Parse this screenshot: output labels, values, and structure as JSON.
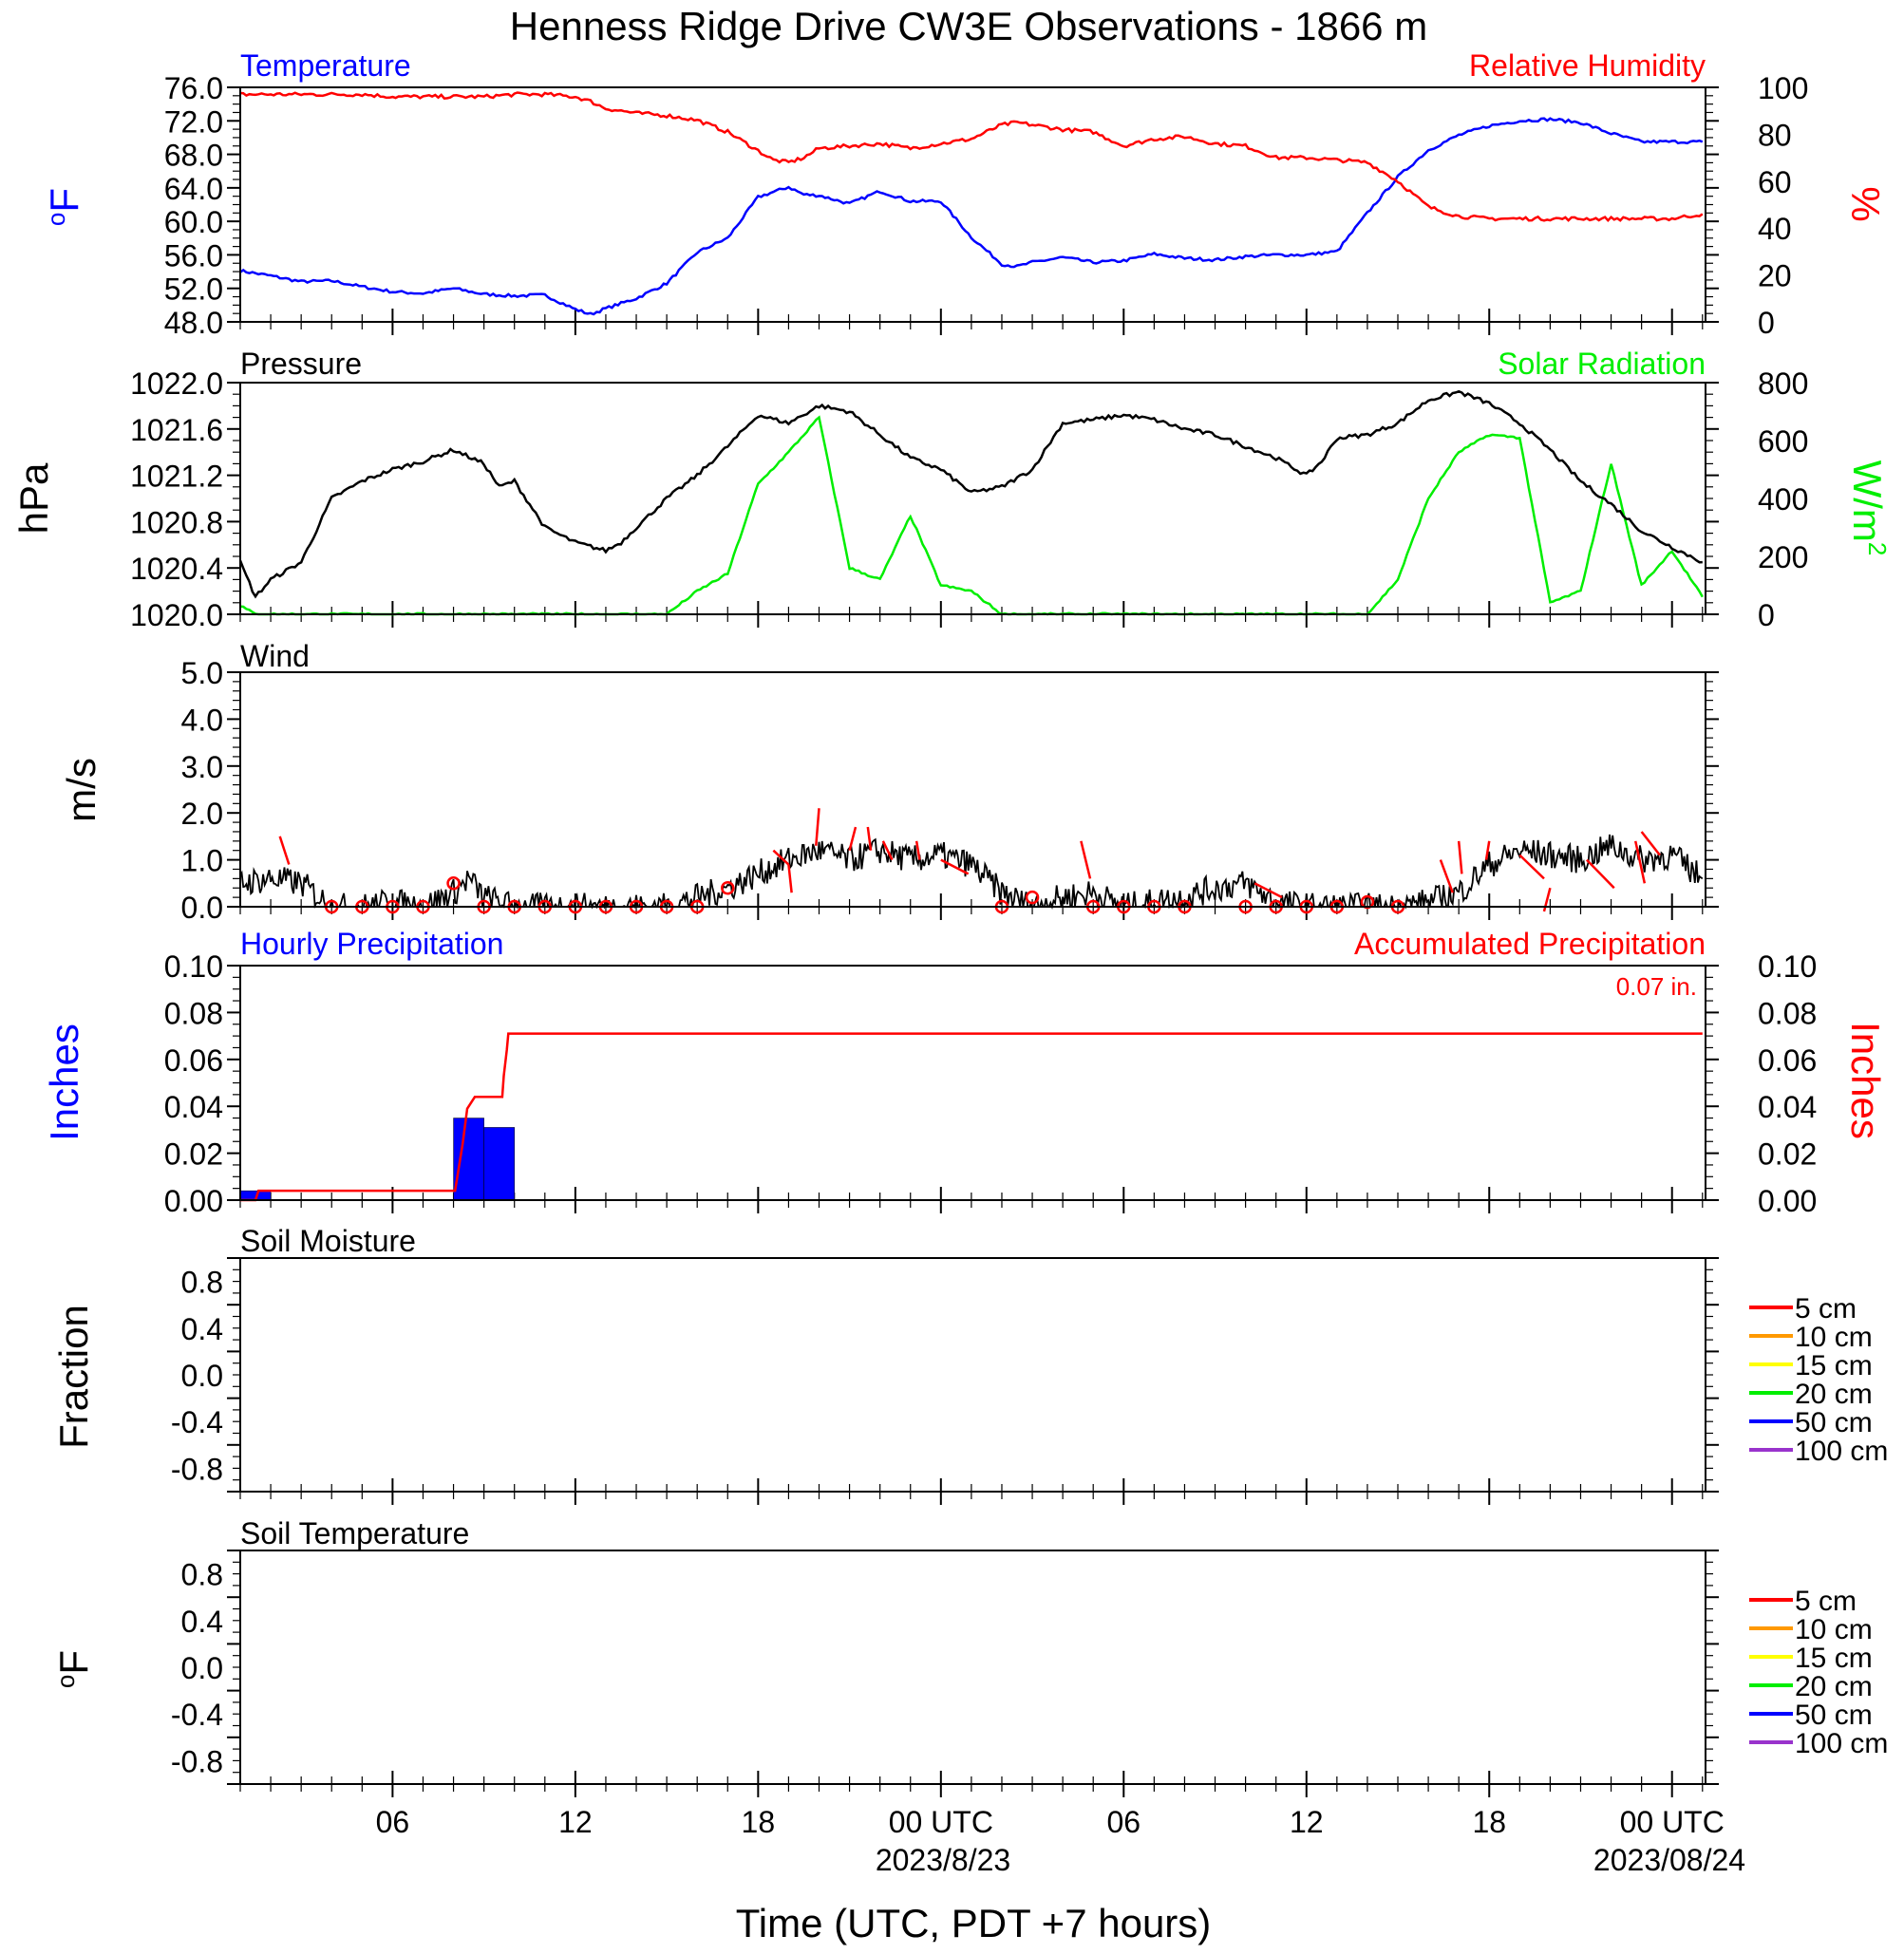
{
  "title": "Henness Ridge Drive CW3E Observations - 1866 m",
  "x_axis": {
    "tick_labels": [
      "06",
      "12",
      "18",
      "00 UTC",
      "06",
      "12",
      "18",
      "00 UTC"
    ],
    "date_labels": [
      "2023/8/23",
      "2023/08/24"
    ],
    "label": "Time (UTC, PDT +7 hours)"
  },
  "colors": {
    "temperature": "#0000ff",
    "humidity": "#ff0000",
    "pressure": "#000000",
    "solar": "#00ee00",
    "wind": "#000000",
    "wind_barb": "#ff0000",
    "precip_bar": "#0000ff",
    "precip_accum": "#ff0000"
  },
  "chart_data": [
    {
      "type": "line",
      "panel": "temperature-humidity",
      "x_hours": [
        1,
        2,
        3,
        4,
        5,
        6,
        7,
        8,
        9,
        10,
        11,
        12,
        12.5,
        13,
        14,
        15,
        16,
        17,
        18,
        18.5,
        19,
        19.5,
        20,
        21,
        22,
        23,
        24,
        25,
        26,
        26.5,
        27,
        28,
        29,
        30,
        31,
        32,
        33,
        34,
        35,
        36,
        37,
        38,
        39,
        40,
        41,
        42,
        43,
        44,
        45,
        46,
        47,
        48,
        49
      ],
      "left_axis": {
        "label": "°F",
        "label_text": "F",
        "label_sup": "o",
        "ticks": [
          "76.0",
          "72.0",
          "68.0",
          "64.0",
          "60.0",
          "56.0",
          "52.0",
          "48.0"
        ],
        "ylim": [
          48,
          76
        ]
      },
      "right_axis": {
        "label": "%",
        "ticks": [
          "100",
          "80",
          "60",
          "40",
          "20",
          "0"
        ],
        "ylim": [
          0,
          100
        ]
      },
      "series": [
        {
          "name": "Temperature",
          "axis": "left",
          "values": [
            54.1,
            53.5,
            52.8,
            52.9,
            52.2,
            51.6,
            51.4,
            52.0,
            51.3,
            51.1,
            51.2,
            49.5,
            48.9,
            49.6,
            50.8,
            52.6,
            56.3,
            58.0,
            62.9,
            63.5,
            64.1,
            63.2,
            63.1,
            62.1,
            63.6,
            62.4,
            62.4,
            58.1,
            54.9,
            54.6,
            55.1,
            55.7,
            55.1,
            55.3,
            56.1,
            55.6,
            55.4,
            55.8,
            56.0,
            56.0,
            56.4,
            61.0,
            65.3,
            68.5,
            70.3,
            71.4,
            72.0,
            72.2,
            71.8,
            70.5,
            69.5,
            69.5,
            69.5
          ]
        },
        {
          "name": "Relative Humidity",
          "axis": "right",
          "values": [
            97,
            97,
            97,
            97,
            97,
            96,
            96,
            96,
            96,
            97,
            97,
            96,
            94,
            91,
            89,
            88,
            86,
            81,
            73,
            69,
            68,
            70,
            74,
            75,
            76,
            74,
            76,
            78,
            84,
            85,
            84,
            82,
            81,
            75,
            78,
            79,
            76,
            75,
            70,
            70,
            69,
            68,
            60,
            49,
            45,
            44,
            44,
            44,
            44,
            44,
            44,
            44,
            46
          ]
        }
      ]
    },
    {
      "type": "line",
      "panel": "pressure-solar",
      "x_hours": [
        1,
        1.5,
        2,
        3,
        4,
        5,
        6,
        7,
        8,
        9,
        9.5,
        10,
        11,
        12,
        13,
        13.5,
        14,
        15,
        16,
        17,
        18,
        19,
        20,
        21,
        22,
        23,
        24,
        25,
        26,
        27,
        28,
        29,
        30,
        31,
        32,
        33,
        34,
        35,
        36,
        36.5,
        37,
        38,
        39,
        40,
        41,
        42,
        43,
        44,
        45,
        46,
        47,
        48,
        49
      ],
      "left_axis": {
        "label": "hPa",
        "ticks": [
          "1022.0",
          "1021.6",
          "1021.2",
          "1020.8",
          "1020.4",
          "1020.0"
        ],
        "ylim": [
          1020.0,
          1022.0
        ]
      },
      "right_axis": {
        "label": "W/m²",
        "label_text": "W/m",
        "label_sup": "2",
        "ticks": [
          "800",
          "600",
          "400",
          "200",
          "0"
        ],
        "ylim": [
          0,
          800
        ]
      },
      "series": [
        {
          "name": "Pressure",
          "axis": "left",
          "values": [
            1020.45,
            1020.15,
            1020.3,
            1020.45,
            1021.0,
            1021.15,
            1021.25,
            1021.32,
            1021.42,
            1021.3,
            1021.1,
            1021.15,
            1020.75,
            1020.62,
            1020.55,
            1020.62,
            1020.75,
            1021.0,
            1021.2,
            1021.45,
            1021.72,
            1021.65,
            1021.8,
            1021.75,
            1021.55,
            1021.35,
            1021.25,
            1021.05,
            1021.1,
            1021.25,
            1021.65,
            1021.68,
            1021.72,
            1021.68,
            1021.6,
            1021.55,
            1021.45,
            1021.35,
            1021.2,
            1021.32,
            1021.52,
            1021.55,
            1021.65,
            1021.85,
            1021.92,
            1021.82,
            1021.65,
            1021.42,
            1021.15,
            1020.95,
            1020.72,
            1020.58,
            1020.45
          ]
        },
        {
          "name": "Solar Radiation",
          "axis": "right",
          "values": [
            30,
            0,
            0,
            0,
            0,
            0,
            0,
            0,
            0,
            0,
            0,
            0,
            0,
            0,
            0,
            0,
            0,
            0,
            80,
            140,
            450,
            560,
            680,
            160,
            120,
            340,
            100,
            80,
            0,
            0,
            0,
            0,
            0,
            0,
            0,
            0,
            0,
            0,
            0,
            0,
            0,
            0,
            120,
            400,
            560,
            620,
            610,
            40,
            80,
            520,
            100,
            220,
            60
          ]
        }
      ]
    },
    {
      "type": "line",
      "panel": "wind",
      "x_hours": [
        1,
        2,
        3,
        4,
        5,
        6,
        7,
        8,
        8.5,
        9,
        10,
        11,
        12,
        13,
        14,
        15,
        16,
        17,
        18,
        19,
        20,
        21,
        22,
        23,
        24,
        25,
        26,
        27,
        28,
        29,
        30,
        31,
        32,
        33,
        34,
        35,
        36,
        37,
        38,
        39,
        40,
        41,
        42,
        43,
        44,
        45,
        46,
        47,
        48,
        49
      ],
      "left_axis": {
        "label": "m/s",
        "ticks": [
          "5.0",
          "4.0",
          "3.0",
          "2.0",
          "1.0",
          "0.0"
        ],
        "ylim": [
          0,
          5
        ]
      },
      "series": [
        {
          "name": "Wind",
          "values": [
            0.5,
            0.6,
            0.5,
            0.0,
            0.0,
            0.1,
            0.0,
            0.3,
            0.6,
            0.2,
            0.0,
            0.0,
            0.0,
            0.0,
            0.0,
            0.0,
            0.2,
            0.4,
            0.7,
            1.0,
            1.2,
            1.0,
            1.2,
            1.0,
            1.1,
            0.9,
            0.3,
            0.0,
            0.2,
            0.3,
            0.0,
            0.1,
            0.2,
            0.4,
            0.5,
            0.1,
            0.0,
            0.0,
            0.0,
            0.0,
            0.1,
            0.3,
            0.9,
            1.2,
            1.1,
            1.0,
            1.3,
            1.0,
            1.1,
            0.6
          ]
        }
      ],
      "calm_circles_x_hours": [
        4,
        5,
        6,
        7,
        8,
        9,
        10,
        11,
        12,
        13,
        14,
        15,
        16,
        17,
        26,
        27,
        29,
        30,
        31,
        32,
        34,
        35,
        36,
        37,
        38,
        39
      ],
      "calm_circles_y": [
        0,
        0,
        0,
        0,
        0.5,
        0,
        0,
        0,
        0,
        0,
        0,
        0,
        0,
        0.4,
        0,
        0.2,
        0,
        0,
        0,
        0,
        0,
        0,
        0,
        0,
        0.1,
        0
      ],
      "barbs": [
        {
          "x": 2.6,
          "y": 0.9,
          "dx": -0.3,
          "dy": 0.6
        },
        {
          "x": 19.0,
          "y": 0.9,
          "dx": -0.5,
          "dy": 0.3
        },
        {
          "x": 19.0,
          "y": 0.9,
          "dx": 0.1,
          "dy": -0.6
        },
        {
          "x": 19.9,
          "y": 1.3,
          "dx": 0.1,
          "dy": 0.8
        },
        {
          "x": 21.0,
          "y": 1.2,
          "dx": 0.2,
          "dy": 0.5
        },
        {
          "x": 21.7,
          "y": 1.2,
          "dx": -0.1,
          "dy": 0.5
        },
        {
          "x": 22.4,
          "y": 1.0,
          "dx": -0.3,
          "dy": 0.4
        },
        {
          "x": 23.3,
          "y": 1.0,
          "dx": -0.1,
          "dy": 0.4
        },
        {
          "x": 24.0,
          "y": 1.0,
          "dx": 0.9,
          "dy": -0.3
        },
        {
          "x": 28.9,
          "y": 0.6,
          "dx": -0.3,
          "dy": 0.8
        },
        {
          "x": 34.3,
          "y": 0.5,
          "dx": 0.9,
          "dy": -0.3
        },
        {
          "x": 40.4,
          "y": 1.0,
          "dx": 0.4,
          "dy": -0.7
        },
        {
          "x": 41.0,
          "y": 1.4,
          "dx": 0.1,
          "dy": -0.7
        },
        {
          "x": 42.0,
          "y": 1.4,
          "dx": -0.1,
          "dy": -0.4
        },
        {
          "x": 43.0,
          "y": 1.1,
          "dx": 0.8,
          "dy": -0.5
        },
        {
          "x": 44.0,
          "y": 0.4,
          "dx": -0.2,
          "dy": -0.5
        },
        {
          "x": 45.2,
          "y": 1.0,
          "dx": 0.9,
          "dy": -0.6
        },
        {
          "x": 46.8,
          "y": 1.4,
          "dx": 0.3,
          "dy": -0.9
        },
        {
          "x": 47.0,
          "y": 1.6,
          "dx": 0.6,
          "dy": -0.5
        }
      ]
    },
    {
      "type": "bar",
      "panel": "precipitation",
      "left_axis": {
        "label": "Inches",
        "ticks": [
          "0.10",
          "0.08",
          "0.06",
          "0.04",
          "0.02",
          "0.00"
        ],
        "ylim": [
          0,
          0.1
        ]
      },
      "right_axis": {
        "label": "Inches",
        "ticks": [
          "0.10",
          "0.08",
          "0.06",
          "0.04",
          "0.02",
          "0.00"
        ],
        "ylim": [
          0,
          0.1
        ]
      },
      "series": [
        {
          "name": "Hourly Precipitation",
          "bars": [
            {
              "start_hour": 1,
              "end_hour": 2,
              "value": 0.004
            },
            {
              "start_hour": 8,
              "end_hour": 9,
              "value": 0.035
            },
            {
              "start_hour": 9,
              "end_hour": 10,
              "value": 0.031
            }
          ]
        },
        {
          "name": "Accumulated Precipitation",
          "x_hours": [
            1,
            1.5,
            1.6,
            7.9,
            8.05,
            8.3,
            8.45,
            8.7,
            9.6,
            9.65,
            9.75,
            9.8,
            49
          ],
          "values": [
            0.0,
            0.0,
            0.004,
            0.004,
            0.004,
            0.024,
            0.039,
            0.044,
            0.044,
            0.053,
            0.064,
            0.071,
            0.071
          ]
        }
      ],
      "accum_total_label": "0.07 in."
    },
    {
      "type": "line",
      "panel": "soil-moisture",
      "title": "Soil Moisture",
      "left_axis": {
        "label": "Fraction",
        "ticks": [
          "0.8",
          "0.4",
          "0.0",
          "-0.4",
          "-0.8"
        ],
        "ylim": [
          -1,
          1
        ]
      },
      "legend": [
        {
          "name": "5 cm",
          "color": "#ff0000"
        },
        {
          "name": "10 cm",
          "color": "#ff9900"
        },
        {
          "name": "15 cm",
          "color": "#ffff00"
        },
        {
          "name": "20 cm",
          "color": "#00ee00"
        },
        {
          "name": "50 cm",
          "color": "#0000ff"
        },
        {
          "name": "100 cm",
          "color": "#9933cc"
        }
      ]
    },
    {
      "type": "line",
      "panel": "soil-temperature",
      "title": "Soil Temperature",
      "left_axis": {
        "label": "°F",
        "label_text": "F",
        "label_sup": "o",
        "ticks": [
          "0.8",
          "0.4",
          "0.0",
          "-0.4",
          "-0.8"
        ],
        "ylim": [
          -1,
          1
        ]
      },
      "legend": [
        {
          "name": "5 cm",
          "color": "#ff0000"
        },
        {
          "name": "10 cm",
          "color": "#ff9900"
        },
        {
          "name": "15 cm",
          "color": "#ffff00"
        },
        {
          "name": "20 cm",
          "color": "#00ee00"
        },
        {
          "name": "50 cm",
          "color": "#0000ff"
        },
        {
          "name": "100 cm",
          "color": "#9933cc"
        }
      ]
    }
  ]
}
